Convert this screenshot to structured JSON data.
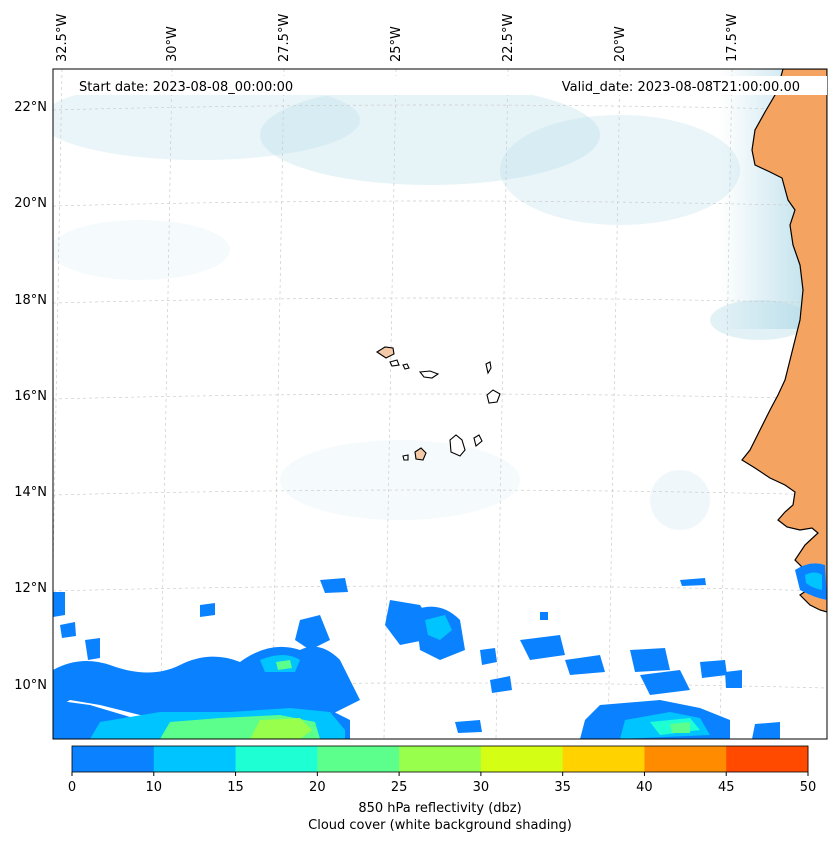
{
  "header": {
    "start_label": "Start date: 2023-08-08_00:00:00",
    "valid_label": "Valid_date: 2023-08-08T21:00:00.00"
  },
  "map": {
    "region": "Cape Verde / West African coast",
    "lon_labels": [
      "32.5°W",
      "30°W",
      "27.5°W",
      "25°W",
      "22.5°W",
      "20°W",
      "17.5°W"
    ],
    "lat_labels": [
      "22°N",
      "20°N",
      "18°N",
      "16°N",
      "14°N",
      "12°N",
      "10°N"
    ],
    "land_color": "#f4a460",
    "gridlines": true
  },
  "colorbar": {
    "ticks": [
      "0",
      "10",
      "15",
      "20",
      "25",
      "30",
      "35",
      "40",
      "45",
      "50"
    ],
    "colors": [
      "#0a82ff",
      "#00c4ff",
      "#1effd4",
      "#5cff8c",
      "#98ff4c",
      "#d4ff14",
      "#ffd200",
      "#ff8c00",
      "#ff4a00"
    ],
    "title": "850 hPa reflectivity (dbz)",
    "subtitle": "Cloud cover (white background shading)"
  }
}
